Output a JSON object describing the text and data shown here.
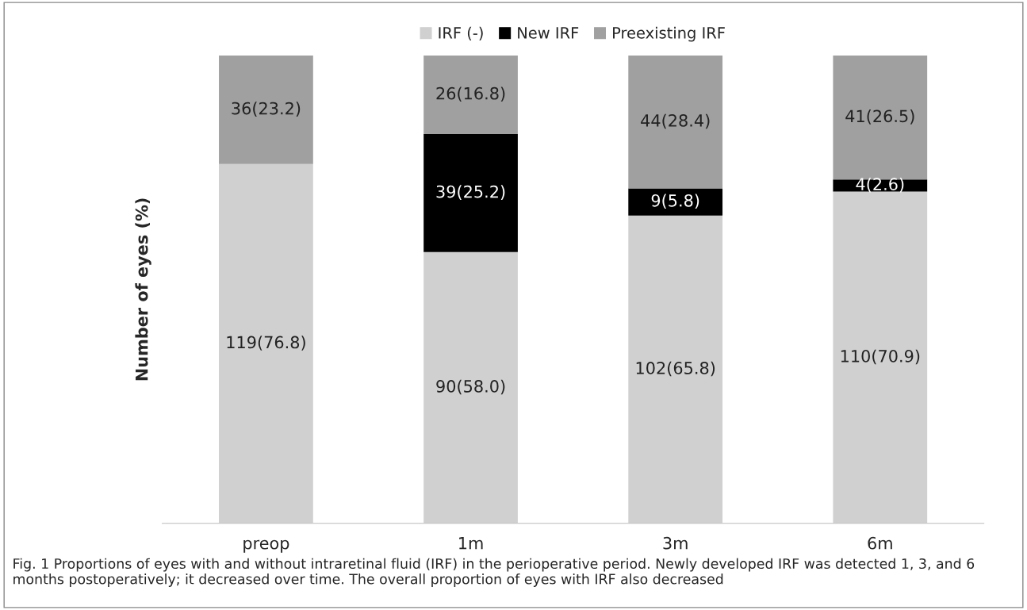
{
  "chart_data": {
    "type": "bar",
    "stacked": true,
    "ylabel": "Number of eyes (%)",
    "categories": [
      "preop",
      "1m",
      "3m",
      "6m"
    ],
    "series": [
      {
        "name": "IRF (-)",
        "color": "#d0d0d0",
        "values": [
          76.8,
          58.0,
          65.8,
          70.9
        ],
        "value_labels": [
          "119(76.8)",
          "90(58.0)",
          "102(65.8)",
          "110(70.9)"
        ]
      },
      {
        "name": "New IRF",
        "color": "#000000",
        "values": [
          0,
          25.2,
          5.8,
          2.6
        ],
        "value_labels": [
          null,
          "39(25.2)",
          "9(5.8)",
          "4(2.6)"
        ]
      },
      {
        "name": "Preexisting IRF",
        "color": "#a0a0a0",
        "values": [
          23.2,
          16.8,
          28.4,
          26.5
        ],
        "value_labels": [
          "36(23.2)",
          "26(16.8)",
          "44(28.4)",
          "41(26.5)"
        ]
      }
    ],
    "legend": "top",
    "grid": false,
    "annotations": [
      "Fig. 1 Proportions of eyes with and without intraretinal fluid (IRF) in the perioperative period. Newly developed IRF was detected 1, 3, and 6 months postoperatively; it decreased over time. The overall proportion of eyes with IRF also decreased"
    ]
  }
}
